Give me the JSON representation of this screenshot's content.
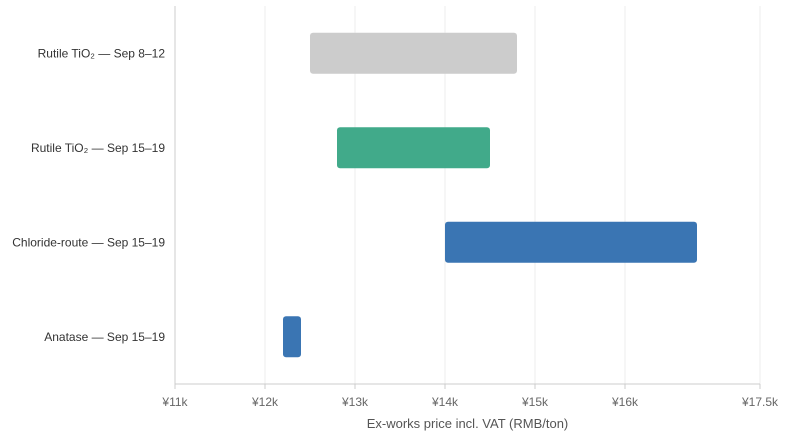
{
  "chart_data": {
    "type": "bar",
    "orientation": "horizontal-range",
    "title": "",
    "xlabel": "Ex-works price incl. VAT (RMB/ton)",
    "ylabel": "",
    "xlim": [
      11000,
      17500
    ],
    "grid": true,
    "x_ticks": [
      {
        "value": 11000,
        "label": "¥11k"
      },
      {
        "value": 12000,
        "label": "¥12k"
      },
      {
        "value": 13000,
        "label": "¥13k"
      },
      {
        "value": 14000,
        "label": "¥14k"
      },
      {
        "value": 15000,
        "label": "¥15k"
      },
      {
        "value": 16000,
        "label": "¥16k"
      },
      {
        "value": 17500,
        "label": "¥17.5k"
      }
    ],
    "categories": [
      "Rutile TiO₂ — Sep 8–12",
      "Rutile TiO₂ — Sep 15–19",
      "Chloride-route — Sep 15–19",
      "Anatase — Sep 15–19"
    ],
    "ranges": [
      {
        "low": 12500,
        "high": 14800,
        "color": "#cccccc"
      },
      {
        "low": 12800,
        "high": 14500,
        "color": "#41aa8a"
      },
      {
        "low": 14000,
        "high": 16800,
        "color": "#3a75b3"
      },
      {
        "low": 12200,
        "high": 12400,
        "color": "#3a75b3"
      }
    ]
  }
}
